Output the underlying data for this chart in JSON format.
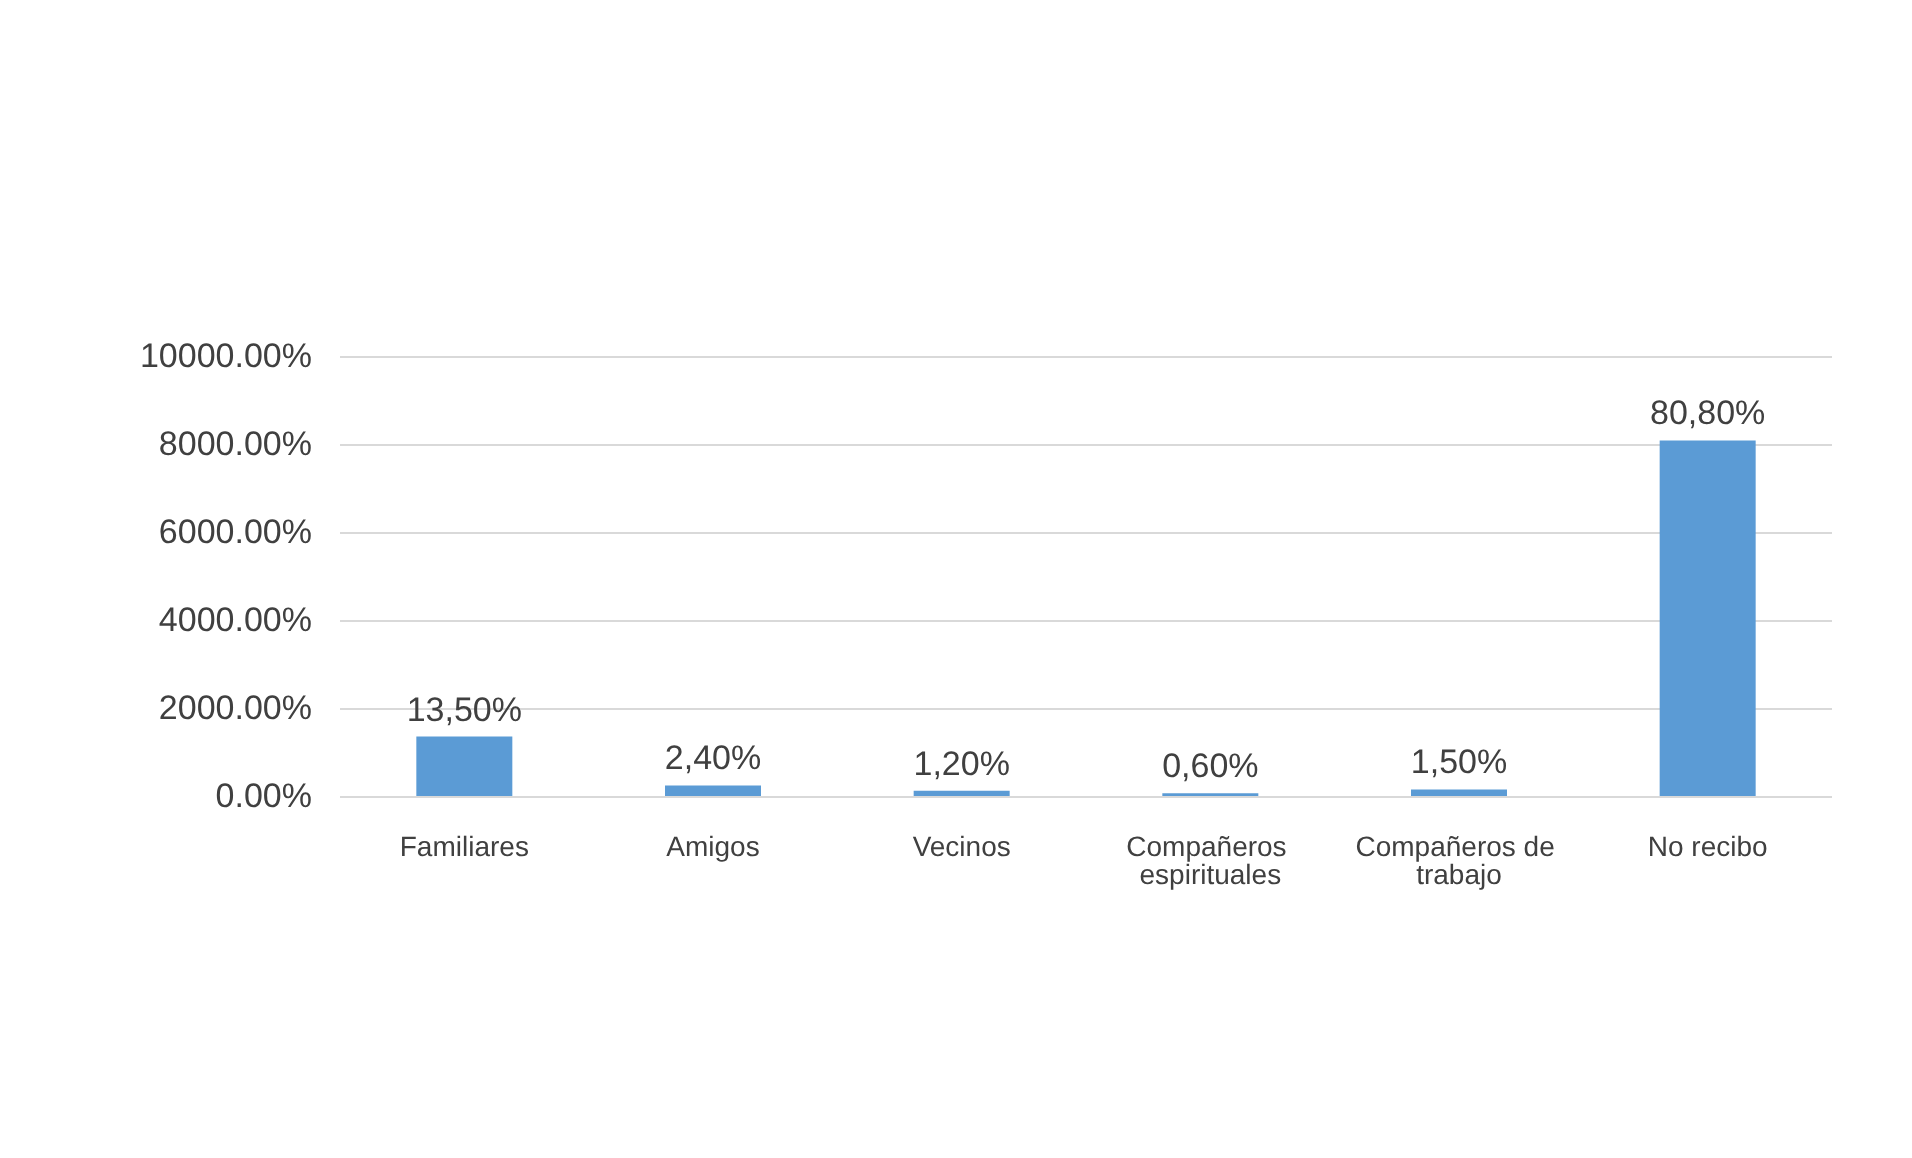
{
  "chart_data": {
    "type": "bar",
    "categories": [
      "Familiares",
      "Amigos",
      "Vecinos",
      "Compañeros espirituales",
      "Compañeros de trabajo",
      "No recibo"
    ],
    "values": [
      13.5,
      2.4,
      1.2,
      0.6,
      1.5,
      80.8
    ],
    "value_labels": [
      "13,50%",
      "2,40%",
      "1,20%",
      "0,60%",
      "1,50%",
      "80,80%"
    ],
    "color": "#5b9bd5",
    "ylim": [
      0,
      100
    ],
    "yticks": [
      {
        "value": 0,
        "label": "0.00%"
      },
      {
        "value": 20,
        "label": "2000.00%"
      },
      {
        "value": 40,
        "label": "4000.00%"
      },
      {
        "value": 60,
        "label": "6000.00%"
      },
      {
        "value": 80,
        "label": "8000.00%"
      },
      {
        "value": 100,
        "label": "10000.00%"
      }
    ],
    "grid": "y"
  }
}
